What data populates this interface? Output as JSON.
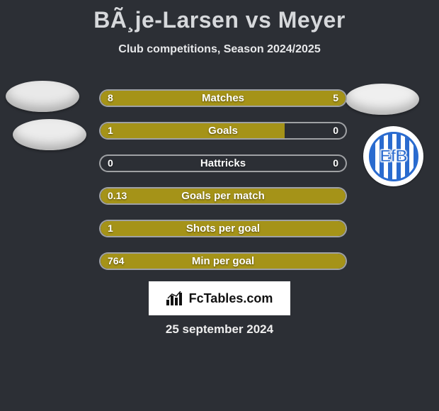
{
  "title": "BÃ¸je-Larsen vs Meyer",
  "subtitle": "Club competitions, Season 2024/2025",
  "date": "25 september 2024",
  "attribution": "FcTables.com",
  "club_logo_text": "EfB",
  "club_logo_colors": {
    "stripe_a": "#2a6bcf",
    "stripe_b": "#ffffff",
    "ring": "#2a6bcf",
    "bg": "#ffffff"
  },
  "colors": {
    "background": "#2c2f35",
    "bar_fill": "#a59318",
    "bar_border": "rgba(255,255,255,0.55)",
    "text": "#ffffff",
    "title": "#d6d8db"
  },
  "rows": [
    {
      "label": "Matches",
      "left": "8",
      "right": "5",
      "left_pct": 61.5,
      "right_pct": 38.5,
      "fill_mode": "both"
    },
    {
      "label": "Goals",
      "left": "1",
      "right": "0",
      "left_pct": 75.0,
      "right_pct": 0,
      "fill_mode": "left"
    },
    {
      "label": "Hattricks",
      "left": "0",
      "right": "0",
      "left_pct": 0,
      "right_pct": 0,
      "fill_mode": "none"
    },
    {
      "label": "Goals per match",
      "left": "0.13",
      "right": "",
      "left_pct": 100,
      "right_pct": 0,
      "fill_mode": "full"
    },
    {
      "label": "Shots per goal",
      "left": "1",
      "right": "",
      "left_pct": 100,
      "right_pct": 0,
      "fill_mode": "full"
    },
    {
      "label": "Min per goal",
      "left": "764",
      "right": "",
      "left_pct": 100,
      "right_pct": 0,
      "fill_mode": "full"
    }
  ]
}
